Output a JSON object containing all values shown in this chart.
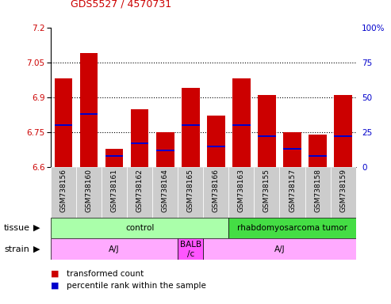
{
  "title": "GDS5527 / 4570731",
  "samples": [
    "GSM738156",
    "GSM738160",
    "GSM738161",
    "GSM738162",
    "GSM738164",
    "GSM738165",
    "GSM738166",
    "GSM738163",
    "GSM738155",
    "GSM738157",
    "GSM738158",
    "GSM738159"
  ],
  "transformed_counts": [
    6.98,
    7.09,
    6.68,
    6.85,
    6.75,
    6.94,
    6.82,
    6.98,
    6.91,
    6.75,
    6.74,
    6.91
  ],
  "percentile_ranks": [
    30,
    38,
    8,
    17,
    12,
    30,
    15,
    30,
    22,
    13,
    8,
    22
  ],
  "ymin": 6.6,
  "ymax": 7.2,
  "yticks": [
    6.6,
    6.75,
    6.9,
    7.05,
    7.2
  ],
  "right_yticks": [
    0,
    25,
    50,
    75,
    100
  ],
  "bar_color": "#cc0000",
  "percentile_color": "#0000cc",
  "tissue_labels": [
    {
      "label": "control",
      "start": 0,
      "end": 7,
      "color": "#aaffaa"
    },
    {
      "label": "rhabdomyosarcoma tumor",
      "start": 7,
      "end": 12,
      "color": "#44dd44"
    }
  ],
  "strain_labels": [
    {
      "label": "A/J",
      "start": 0,
      "end": 5,
      "color": "#ffaaff"
    },
    {
      "label": "BALB\n/c",
      "start": 5,
      "end": 6,
      "color": "#ff55ff"
    },
    {
      "label": "A/J",
      "start": 6,
      "end": 12,
      "color": "#ffaaff"
    }
  ],
  "title_color": "#cc0000",
  "left_axis_color": "#cc0000",
  "right_axis_color": "#0000cc",
  "xtick_bg_color": "#cccccc",
  "xtick_sep_color": "#ffffff"
}
